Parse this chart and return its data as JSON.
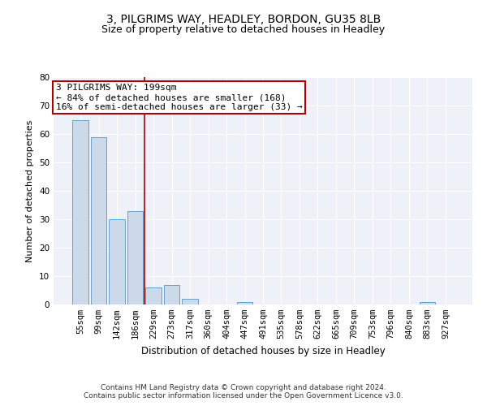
{
  "title": "3, PILGRIMS WAY, HEADLEY, BORDON, GU35 8LB",
  "subtitle": "Size of property relative to detached houses in Headley",
  "xlabel": "Distribution of detached houses by size in Headley",
  "ylabel": "Number of detached properties",
  "categories": [
    "55sqm",
    "99sqm",
    "142sqm",
    "186sqm",
    "229sqm",
    "273sqm",
    "317sqm",
    "360sqm",
    "404sqm",
    "447sqm",
    "491sqm",
    "535sqm",
    "578sqm",
    "622sqm",
    "665sqm",
    "709sqm",
    "753sqm",
    "796sqm",
    "840sqm",
    "883sqm",
    "927sqm"
  ],
  "values": [
    65,
    59,
    30,
    33,
    6,
    7,
    2,
    0,
    0,
    1,
    0,
    0,
    0,
    0,
    0,
    0,
    0,
    0,
    0,
    1,
    0
  ],
  "bar_color": "#ccd9e8",
  "bar_edge_color": "#6a9fc8",
  "vline_x": 3.5,
  "vline_color": "#aa0000",
  "annotation_text": "3 PILGRIMS WAY: 199sqm\n← 84% of detached houses are smaller (168)\n16% of semi-detached houses are larger (33) →",
  "annotation_box_color": "#ffffff",
  "annotation_box_edge_color": "#aa0000",
  "ylim": [
    0,
    80
  ],
  "yticks": [
    0,
    10,
    20,
    30,
    40,
    50,
    60,
    70,
    80
  ],
  "bg_color": "#eef2f8",
  "footer_text": "Contains HM Land Registry data © Crown copyright and database right 2024.\nContains public sector information licensed under the Open Government Licence v3.0.",
  "title_fontsize": 10,
  "subtitle_fontsize": 9,
  "xlabel_fontsize": 8.5,
  "ylabel_fontsize": 8,
  "tick_fontsize": 7.5,
  "annotation_fontsize": 8,
  "footer_fontsize": 6.5
}
